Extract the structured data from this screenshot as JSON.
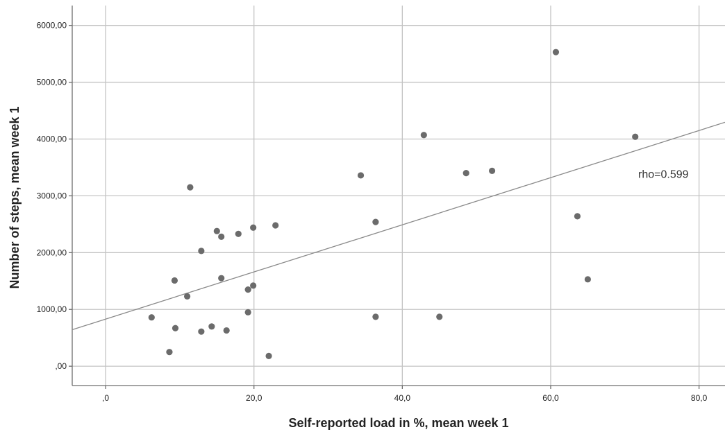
{
  "chart_data": {
    "type": "scatter",
    "xlabel": "Self-reported load in %, mean week 1",
    "ylabel": "Number of steps, mean week 1",
    "xlim": [
      -4.5,
      83.5
    ],
    "ylim": [
      -340,
      6350
    ],
    "x_ticks": [
      0,
      20,
      40,
      60,
      80
    ],
    "x_tick_labels": [
      ",0",
      "20,0",
      "40,0",
      "60,0",
      "80,0"
    ],
    "y_ticks": [
      0,
      1000,
      2000,
      3000,
      4000,
      5000,
      6000
    ],
    "y_tick_labels": [
      ",00",
      "1000,00",
      "2000,00",
      "3000,00",
      "4000,00",
      "5000,00",
      "6000,00"
    ],
    "grid": true,
    "point_color": "#6b6b6b",
    "line_color": "#8a8a8a",
    "fit_line": {
      "intercept": 830,
      "slope": 41.5
    },
    "annotation": {
      "text": "rho=0.599",
      "x": 71.8,
      "y": 3390
    },
    "points": [
      {
        "x": 6.2,
        "y": 860
      },
      {
        "x": 8.6,
        "y": 250
      },
      {
        "x": 9.3,
        "y": 1510
      },
      {
        "x": 9.4,
        "y": 670
      },
      {
        "x": 11.0,
        "y": 1230
      },
      {
        "x": 11.4,
        "y": 3150
      },
      {
        "x": 12.9,
        "y": 2030
      },
      {
        "x": 12.9,
        "y": 610
      },
      {
        "x": 14.3,
        "y": 700
      },
      {
        "x": 15.0,
        "y": 2380
      },
      {
        "x": 15.6,
        "y": 2280
      },
      {
        "x": 15.6,
        "y": 1550
      },
      {
        "x": 16.3,
        "y": 630
      },
      {
        "x": 17.9,
        "y": 2330
      },
      {
        "x": 19.2,
        "y": 1350
      },
      {
        "x": 19.2,
        "y": 950
      },
      {
        "x": 19.9,
        "y": 2440
      },
      {
        "x": 19.9,
        "y": 1420
      },
      {
        "x": 22.0,
        "y": 180
      },
      {
        "x": 22.9,
        "y": 2480
      },
      {
        "x": 34.4,
        "y": 3360
      },
      {
        "x": 36.4,
        "y": 2540
      },
      {
        "x": 36.4,
        "y": 870
      },
      {
        "x": 42.9,
        "y": 4070
      },
      {
        "x": 45.0,
        "y": 870
      },
      {
        "x": 48.6,
        "y": 3400
      },
      {
        "x": 52.1,
        "y": 3440
      },
      {
        "x": 60.7,
        "y": 5530
      },
      {
        "x": 63.6,
        "y": 2640
      },
      {
        "x": 65.0,
        "y": 1530
      },
      {
        "x": 71.4,
        "y": 4040
      }
    ]
  }
}
